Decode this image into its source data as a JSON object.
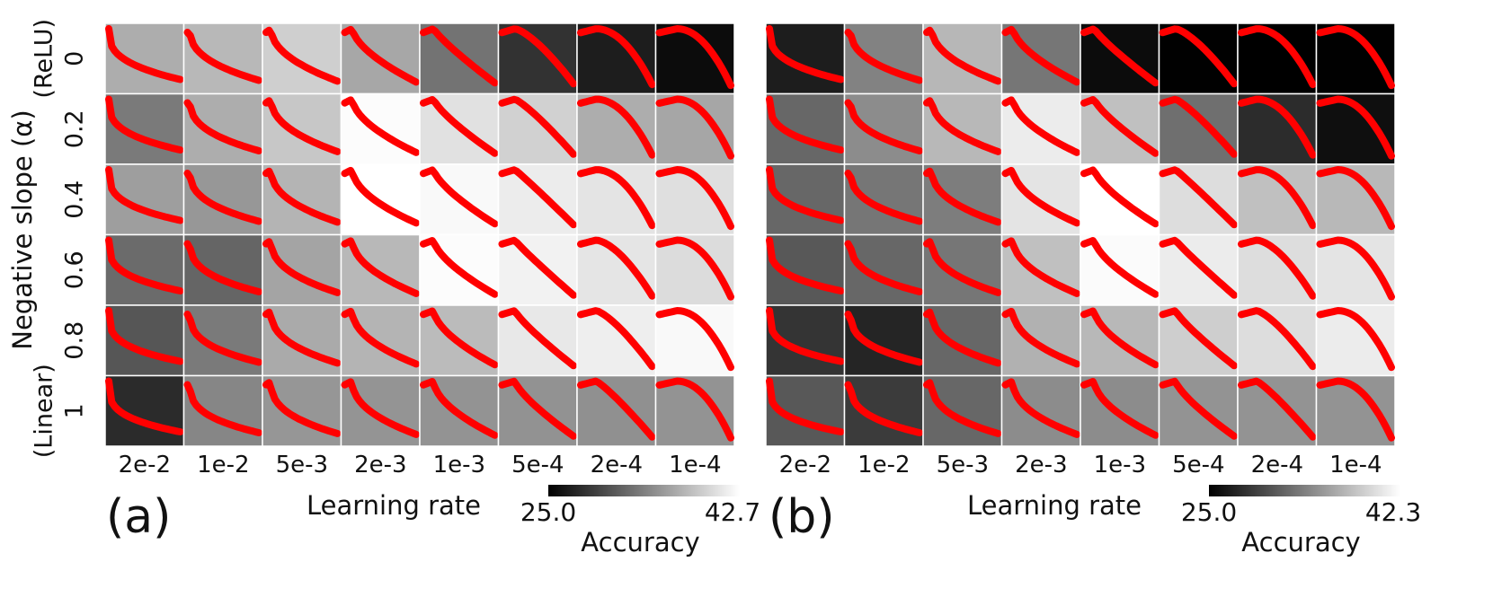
{
  "figure": {
    "ylabel": "Negative slope (α)",
    "y_ticks": [
      {
        "lines": [
          "(ReLU)",
          "0"
        ]
      },
      {
        "lines": [
          "0.2"
        ]
      },
      {
        "lines": [
          "0.4"
        ]
      },
      {
        "lines": [
          "0.6"
        ]
      },
      {
        "lines": [
          "0.8"
        ]
      },
      {
        "lines": [
          "(Linear)",
          "1"
        ]
      }
    ]
  },
  "chart_data": [
    {
      "type": "heatmap",
      "panel": "(a)",
      "xlabel": "Learning rate",
      "ylabel": "Negative slope (α)",
      "x_categories": [
        "2e-2",
        "1e-2",
        "5e-3",
        "2e-3",
        "1e-3",
        "5e-4",
        "2e-4",
        "1e-4"
      ],
      "y_categories": [
        "0",
        "0.2",
        "0.4",
        "0.6",
        "0.8",
        "1"
      ],
      "colorbar": {
        "label": "Accuracy",
        "min": 25.0,
        "max": 42.7,
        "min_label": "25.0",
        "max_label": "42.7"
      },
      "values": [
        [
          37.0,
          37.8,
          39.4,
          36.6,
          33.0,
          28.5,
          27.0,
          25.8
        ],
        [
          33.5,
          37.0,
          38.8,
          42.5,
          40.6,
          39.5,
          37.0,
          36.5
        ],
        [
          36.0,
          35.5,
          37.5,
          42.7,
          42.3,
          41.4,
          40.8,
          40.5
        ],
        [
          32.4,
          32.0,
          36.4,
          37.8,
          42.5,
          41.8,
          40.9,
          40.3
        ],
        [
          31.0,
          33.5,
          36.8,
          37.5,
          38.0,
          41.1,
          41.5,
          42.3
        ],
        [
          28.0,
          34.3,
          35.4,
          35.3,
          35.2,
          35.1,
          35.0,
          35.2
        ]
      ]
    },
    {
      "type": "heatmap",
      "panel": "(b)",
      "xlabel": "Learning rate",
      "ylabel": "Negative slope (α)",
      "x_categories": [
        "2e-2",
        "1e-2",
        "5e-3",
        "2e-3",
        "1e-3",
        "5e-4",
        "2e-4",
        "1e-4"
      ],
      "y_categories": [
        "0",
        "0.2",
        "0.4",
        "0.6",
        "0.8",
        "1"
      ],
      "colorbar": {
        "label": "Accuracy",
        "min": 25.0,
        "max": 42.3,
        "min_label": "25.0",
        "max_label": "42.3"
      },
      "values": [
        [
          27.0,
          33.8,
          37.4,
          33.0,
          25.8,
          25.1,
          25.0,
          25.1
        ],
        [
          32.0,
          34.5,
          37.5,
          41.0,
          38.0,
          32.5,
          28.0,
          26.0
        ],
        [
          32.0,
          33.0,
          33.5,
          40.5,
          42.3,
          40.0,
          38.0,
          37.5
        ],
        [
          31.0,
          32.0,
          33.0,
          38.0,
          42.0,
          41.0,
          40.0,
          40.5
        ],
        [
          28.5,
          27.5,
          32.0,
          37.0,
          37.5,
          39.0,
          40.0,
          41.0
        ],
        [
          31.0,
          29.0,
          32.0,
          34.5,
          34.5,
          35.0,
          35.0,
          35.0
        ]
      ]
    }
  ]
}
